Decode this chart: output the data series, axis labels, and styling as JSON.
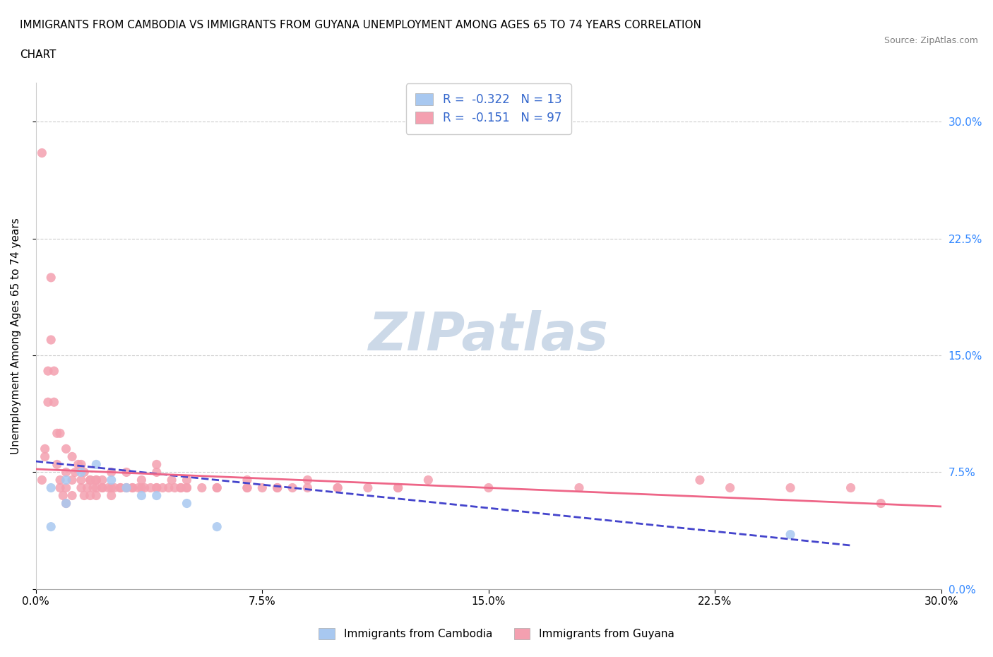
{
  "title_line1": "IMMIGRANTS FROM CAMBODIA VS IMMIGRANTS FROM GUYANA UNEMPLOYMENT AMONG AGES 65 TO 74 YEARS CORRELATION",
  "title_line2": "CHART",
  "source_text": "Source: ZipAtlas.com",
  "ylabel": "Unemployment Among Ages 65 to 74 years",
  "xlim": [
    0.0,
    0.3
  ],
  "ylim": [
    0.0,
    0.325
  ],
  "x_ticks": [
    0.0,
    0.075,
    0.15,
    0.225,
    0.3
  ],
  "y_ticks": [
    0.0,
    0.075,
    0.15,
    0.225,
    0.3
  ],
  "cambodia_color": "#a8c8f0",
  "guyana_color": "#f4a0b0",
  "cambodia_line_color": "#4444cc",
  "guyana_line_color": "#ee6688",
  "r_cambodia": -0.322,
  "n_cambodia": 13,
  "r_guyana": -0.151,
  "n_guyana": 97,
  "watermark_color": "#ccd9e8",
  "legend_r_color": "#3366cc",
  "background_color": "#ffffff",
  "cambodia_scatter_x": [
    0.005,
    0.01,
    0.01,
    0.015,
    0.02,
    0.025,
    0.03,
    0.035,
    0.04,
    0.05,
    0.06,
    0.25,
    0.005
  ],
  "cambodia_scatter_y": [
    0.065,
    0.07,
    0.055,
    0.075,
    0.08,
    0.07,
    0.065,
    0.06,
    0.06,
    0.055,
    0.04,
    0.035,
    0.04
  ],
  "guyana_scatter_x": [
    0.002,
    0.003,
    0.004,
    0.005,
    0.005,
    0.006,
    0.007,
    0.007,
    0.008,
    0.008,
    0.009,
    0.01,
    0.01,
    0.01,
    0.012,
    0.012,
    0.013,
    0.015,
    0.015,
    0.015,
    0.016,
    0.017,
    0.018,
    0.018,
    0.019,
    0.02,
    0.02,
    0.02,
    0.022,
    0.022,
    0.025,
    0.025,
    0.025,
    0.028,
    0.03,
    0.03,
    0.032,
    0.035,
    0.035,
    0.04,
    0.04,
    0.04,
    0.045,
    0.048,
    0.05,
    0.05,
    0.055,
    0.06,
    0.07,
    0.07,
    0.075,
    0.08,
    0.085,
    0.09,
    0.1,
    0.12,
    0.13,
    0.15,
    0.18,
    0.22,
    0.23,
    0.25,
    0.27,
    0.002,
    0.004,
    0.006,
    0.008,
    0.01,
    0.012,
    0.014,
    0.016,
    0.018,
    0.02,
    0.022,
    0.024,
    0.026,
    0.028,
    0.03,
    0.032,
    0.034,
    0.036,
    0.038,
    0.04,
    0.042,
    0.044,
    0.046,
    0.048,
    0.05,
    0.06,
    0.07,
    0.08,
    0.09,
    0.1,
    0.11,
    0.12,
    0.28,
    0.003
  ],
  "guyana_scatter_y": [
    0.07,
    0.09,
    0.12,
    0.16,
    0.2,
    0.14,
    0.1,
    0.08,
    0.07,
    0.065,
    0.06,
    0.055,
    0.065,
    0.075,
    0.06,
    0.07,
    0.075,
    0.065,
    0.07,
    0.08,
    0.06,
    0.065,
    0.06,
    0.07,
    0.065,
    0.06,
    0.065,
    0.07,
    0.065,
    0.07,
    0.065,
    0.06,
    0.075,
    0.065,
    0.065,
    0.075,
    0.065,
    0.065,
    0.07,
    0.065,
    0.075,
    0.08,
    0.07,
    0.065,
    0.065,
    0.07,
    0.065,
    0.065,
    0.065,
    0.07,
    0.065,
    0.065,
    0.065,
    0.07,
    0.065,
    0.065,
    0.07,
    0.065,
    0.065,
    0.07,
    0.065,
    0.065,
    0.065,
    0.28,
    0.14,
    0.12,
    0.1,
    0.09,
    0.085,
    0.08,
    0.075,
    0.07,
    0.07,
    0.065,
    0.065,
    0.065,
    0.065,
    0.065,
    0.065,
    0.065,
    0.065,
    0.065,
    0.065,
    0.065,
    0.065,
    0.065,
    0.065,
    0.065,
    0.065,
    0.065,
    0.065,
    0.065,
    0.065,
    0.065,
    0.065,
    0.055,
    0.085
  ],
  "camb_trend_x": [
    0.0,
    0.27
  ],
  "camb_trend_y": [
    0.082,
    0.028
  ],
  "guy_trend_x": [
    0.0,
    0.3
  ],
  "guy_trend_y": [
    0.077,
    0.053
  ]
}
